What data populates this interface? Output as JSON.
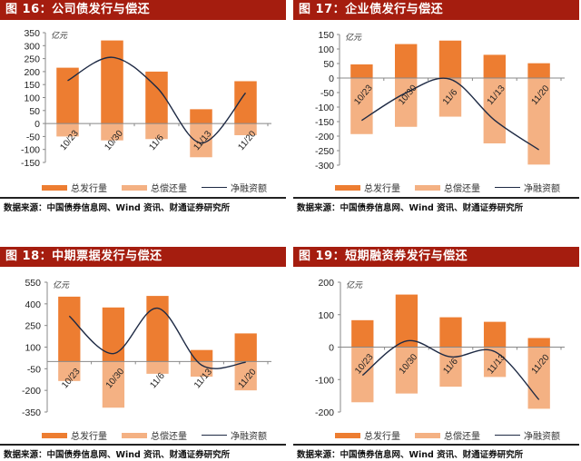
{
  "colors": {
    "title_bg": "#a51d0f",
    "issuance": "#ed7d31",
    "repayment": "#f4b183",
    "net": "#1e2a44",
    "axis": "#888888"
  },
  "legend": {
    "issuance": "总发行量",
    "repayment": "总偿还量",
    "net": "净融资额"
  },
  "source": "数据来源：中国债券信息网、Wind 资讯、财通证券研究所",
  "unit": "亿元",
  "panels": [
    {
      "title": "图 16：公司债发行与偿还"
    },
    {
      "title": "图 17：企业债发行与偿还"
    },
    {
      "title": "图 18：中期票据发行与偿还"
    },
    {
      "title": "图 19：短期融资券发行与偿还"
    }
  ],
  "chart_data": [
    {
      "type": "bar",
      "title": "图 16：公司债发行与偿还",
      "ylabel": "亿元",
      "categories": [
        "10/23",
        "10/30",
        "11/6",
        "11/13",
        "11/20"
      ],
      "ylim": [
        -150,
        350
      ],
      "yticks": [
        350,
        300,
        250,
        200,
        150,
        100,
        50,
        0,
        -50,
        -100,
        -150
      ],
      "series": [
        {
          "name": "总发行量",
          "type": "bar",
          "values": [
            215,
            320,
            200,
            55,
            163
          ]
        },
        {
          "name": "总偿还量",
          "type": "bar",
          "values": [
            -50,
            -65,
            -60,
            -130,
            -45
          ]
        },
        {
          "name": "净融资额",
          "type": "line",
          "values": [
            165,
            255,
            140,
            -75,
            118
          ]
        }
      ],
      "legend_position": "bottom"
    },
    {
      "type": "bar",
      "title": "图 17：企业债发行与偿还",
      "ylabel": "亿元",
      "categories": [
        "10/23",
        "10/30",
        "11/6",
        "11/13",
        "11/20"
      ],
      "ylim": [
        -300,
        150
      ],
      "yticks": [
        150,
        100,
        50,
        0,
        -50,
        -100,
        -150,
        -200,
        -250,
        -300
      ],
      "series": [
        {
          "name": "总发行量",
          "type": "bar",
          "values": [
            47,
            117,
            129,
            80,
            51
          ]
        },
        {
          "name": "总偿还量",
          "type": "bar",
          "values": [
            -193,
            -168,
            -133,
            -225,
            -298
          ]
        },
        {
          "name": "净融资额",
          "type": "line",
          "values": [
            -146,
            -51,
            -4,
            -145,
            -247
          ]
        }
      ],
      "legend_position": "bottom"
    },
    {
      "type": "bar",
      "title": "图 18：中期票据发行与偿还",
      "ylabel": "亿元",
      "categories": [
        "10/23",
        "10/30",
        "11/6",
        "11/13",
        "11/20"
      ],
      "ylim": [
        -350,
        550
      ],
      "yticks": [
        550,
        400,
        250,
        100,
        -50,
        -200,
        -350
      ],
      "series": [
        {
          "name": "总发行量",
          "type": "bar",
          "values": [
            450,
            375,
            455,
            80,
            195
          ]
        },
        {
          "name": "总偿还量",
          "type": "bar",
          "values": [
            -135,
            -320,
            -85,
            -105,
            -200
          ]
        },
        {
          "name": "净融资额",
          "type": "line",
          "values": [
            315,
            55,
            370,
            -25,
            -5
          ]
        }
      ],
      "legend_position": "bottom"
    },
    {
      "type": "bar",
      "title": "图 19：短期融资券发行与偿还",
      "ylabel": "亿元",
      "categories": [
        "10/23",
        "10/30",
        "11/6",
        "11/13",
        "11/20"
      ],
      "ylim": [
        -200,
        200
      ],
      "yticks": [
        200,
        100,
        0,
        -100,
        -200
      ],
      "series": [
        {
          "name": "总发行量",
          "type": "bar",
          "values": [
            83,
            162,
            92,
            78,
            28
          ]
        },
        {
          "name": "总偿还量",
          "type": "bar",
          "values": [
            -170,
            -143,
            -122,
            -92,
            -190
          ]
        },
        {
          "name": "净融资额",
          "type": "line",
          "values": [
            -87,
            19,
            -30,
            -14,
            -162
          ]
        }
      ],
      "legend_position": "bottom"
    }
  ]
}
